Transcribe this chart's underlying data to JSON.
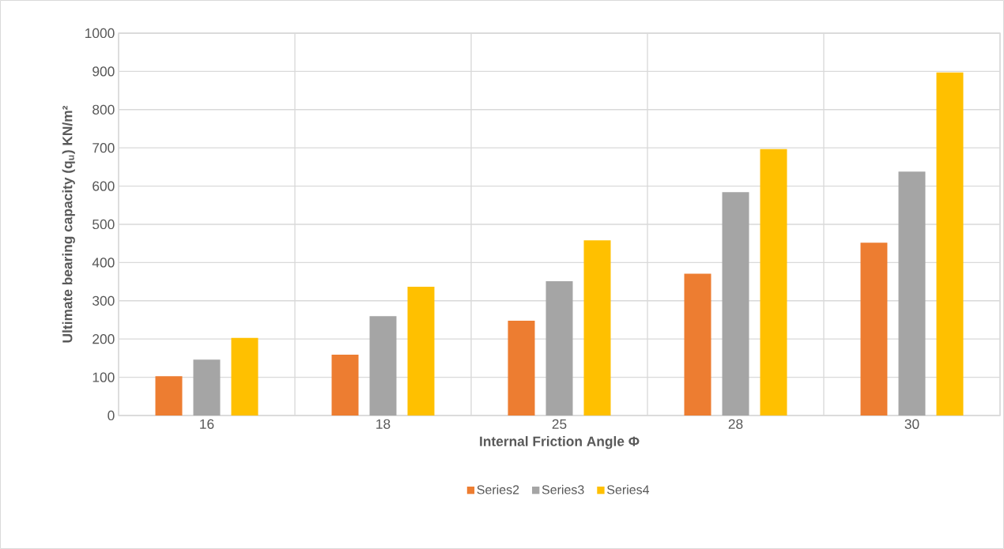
{
  "chart_data": {
    "type": "bar",
    "xlabel": "Internal Friction Angle Φ",
    "ylabel": "Ultimate bearing capacity (q$_{u}$) KN/m²",
    "categories": [
      "16",
      "18",
      "25",
      "28",
      "30"
    ],
    "series": [
      {
        "name": "Series2",
        "color": "#ed7d31",
        "values": [
          103,
          159,
          248,
          371,
          452
        ]
      },
      {
        "name": "Series3",
        "color": "#a5a5a5",
        "values": [
          146,
          260,
          351,
          584,
          638
        ]
      },
      {
        "name": "Series4",
        "color": "#ffc000",
        "values": [
          203,
          337,
          458,
          697,
          897
        ]
      }
    ],
    "ylim": [
      0,
      1000
    ],
    "yticks": [
      0,
      100,
      200,
      300,
      400,
      500,
      600,
      700,
      800,
      900,
      1000
    ],
    "grid": true,
    "legend": "bottom"
  }
}
